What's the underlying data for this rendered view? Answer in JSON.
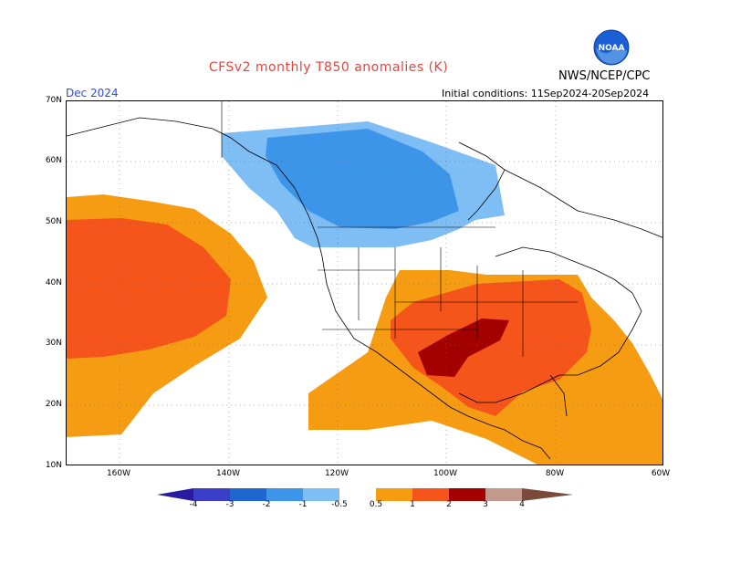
{
  "header": {
    "title": "CFSv2 monthly T850 anomalies (K)",
    "agency": "NWS/NCEP/CPC",
    "month": "Dec 2024",
    "initial_conditions": "Initial conditions: 11Sep2024-20Sep2024"
  },
  "logo": {
    "text": "NOAA"
  },
  "axes": {
    "lat_labels": [
      "70N",
      "60N",
      "50N",
      "40N",
      "30N",
      "20N",
      "10N"
    ],
    "lon_labels": [
      "160W",
      "140W",
      "120W",
      "100W",
      "80W",
      "60W"
    ]
  },
  "colorbar": {
    "labels": [
      "-4",
      "-3",
      "-2",
      "-1",
      "-0.5",
      "0.5",
      "1",
      "2",
      "3",
      "4"
    ],
    "colors": {
      "lt_m4": "#2a1aa0",
      "m4_m3": "#3b3fc8",
      "m3_m2": "#1f66d1",
      "m2_m1": "#3d95ea",
      "m1_m05": "#7fbdf5",
      "neutral": "#ffffff",
      "p05_p1": "#f59c12",
      "p1_p2": "#f5541a",
      "p2_p3": "#a30000",
      "p3_p4": "#c29a8c",
      "gt_p4": "#7a4b3a"
    }
  },
  "colors": {
    "title": "#e0463e",
    "month": "#2a4fd6",
    "logo_blue": "#1a5fd6"
  }
}
